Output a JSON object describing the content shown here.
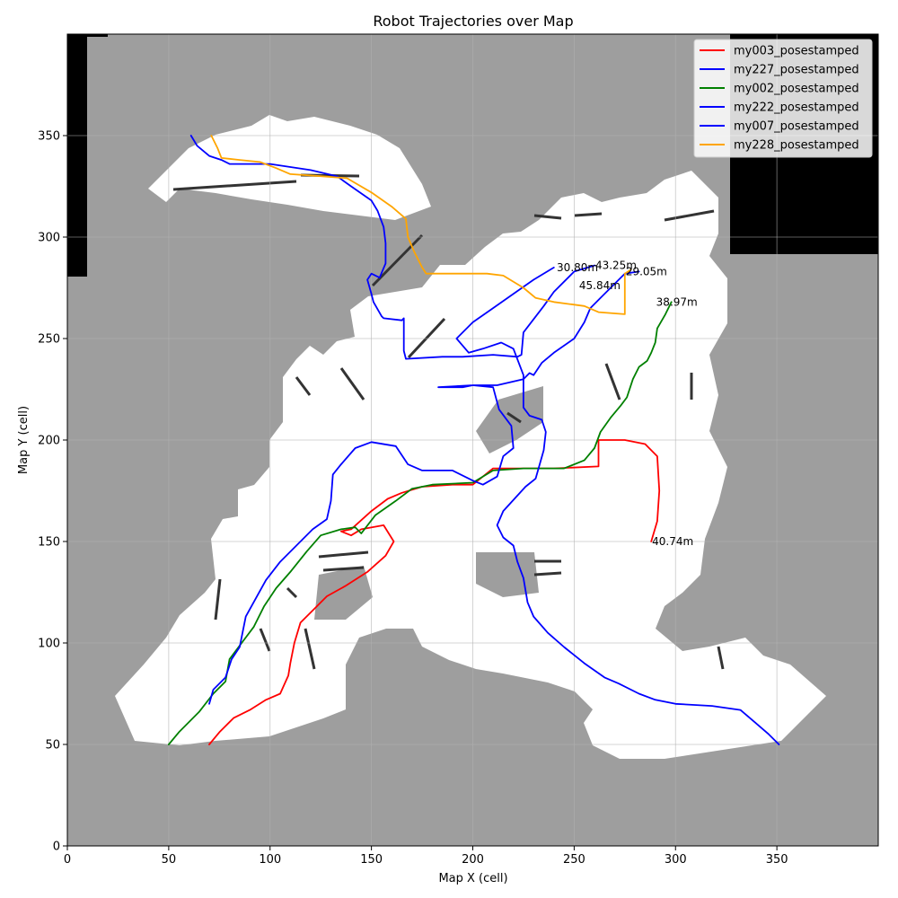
{
  "chart_data": {
    "type": "line",
    "title": "Robot Trajectories over Map",
    "xlabel": "Map X (cell)",
    "ylabel": "Map Y (cell)",
    "xlim": [
      0,
      400
    ],
    "ylim": [
      0,
      400
    ],
    "xticks": [
      0,
      50,
      100,
      150,
      200,
      250,
      300,
      350
    ],
    "yticks": [
      0,
      50,
      100,
      150,
      200,
      250,
      300,
      350
    ],
    "grid": true,
    "legend_position": "top-right",
    "map_colors": {
      "unknown": "#9e9e9e",
      "free": "#ffffff",
      "occupied": "#333333",
      "outside": "#000000"
    },
    "series": [
      {
        "name": "my003_posestamped",
        "color": "#ff0000",
        "points": [
          [
            70,
            50
          ],
          [
            75,
            56
          ],
          [
            82,
            63
          ],
          [
            90,
            67
          ],
          [
            98,
            72
          ],
          [
            105,
            75
          ],
          [
            109,
            84
          ],
          [
            110,
            90
          ],
          [
            112,
            100
          ],
          [
            115,
            110
          ],
          [
            122,
            117
          ],
          [
            128,
            123
          ],
          [
            137,
            128
          ],
          [
            148,
            135
          ],
          [
            157,
            143
          ],
          [
            161,
            150
          ],
          [
            156,
            158
          ],
          [
            145,
            156
          ],
          [
            140,
            153
          ],
          [
            135,
            155
          ],
          [
            140,
            156
          ],
          [
            150,
            165
          ],
          [
            158,
            171
          ],
          [
            165,
            174
          ],
          [
            175,
            177
          ],
          [
            190,
            178
          ],
          [
            200,
            178
          ],
          [
            210,
            186
          ],
          [
            240,
            186
          ],
          [
            262,
            187
          ],
          [
            262,
            200
          ],
          [
            275,
            200
          ],
          [
            285,
            198
          ],
          [
            291,
            192
          ],
          [
            292,
            175
          ],
          [
            291,
            160
          ],
          [
            288,
            150
          ]
        ],
        "label": "40.74m",
        "label_at": [
          288,
          150
        ]
      },
      {
        "name": "my227_posestamped",
        "color": "#0000ff",
        "points": [
          [
            61,
            350
          ],
          [
            64,
            345
          ],
          [
            70,
            340
          ],
          [
            76,
            338
          ],
          [
            80,
            336
          ],
          [
            100,
            336
          ],
          [
            120,
            333
          ],
          [
            133,
            330
          ],
          [
            140,
            325
          ],
          [
            150,
            318
          ],
          [
            153,
            313
          ],
          [
            156,
            305
          ],
          [
            157,
            297
          ],
          [
            157,
            287
          ],
          [
            154,
            280
          ],
          [
            150,
            282
          ],
          [
            148,
            279
          ],
          [
            150,
            272
          ],
          [
            151,
            268
          ],
          [
            155,
            261
          ],
          [
            156,
            260
          ],
          [
            165,
            259
          ],
          [
            166,
            260
          ],
          [
            166,
            244
          ],
          [
            167,
            240
          ],
          [
            185,
            241
          ],
          [
            195,
            241
          ],
          [
            210,
            242
          ],
          [
            222,
            241
          ],
          [
            224,
            242
          ],
          [
            225,
            253
          ],
          [
            235,
            266
          ],
          [
            240,
            273
          ],
          [
            250,
            283
          ],
          [
            260,
            286
          ]
        ],
        "label": "43.25m",
        "label_at": [
          260,
          286
        ]
      },
      {
        "name": "my002_posestamped",
        "color": "#008000",
        "points": [
          [
            50,
            50
          ],
          [
            55,
            56
          ],
          [
            65,
            66
          ],
          [
            72,
            75
          ],
          [
            78,
            81
          ],
          [
            80,
            92
          ],
          [
            86,
            100
          ],
          [
            92,
            108
          ],
          [
            97,
            118
          ],
          [
            103,
            127
          ],
          [
            110,
            135
          ],
          [
            118,
            145
          ],
          [
            125,
            153
          ],
          [
            135,
            156
          ],
          [
            142,
            157
          ],
          [
            145,
            154
          ],
          [
            152,
            163
          ],
          [
            162,
            170
          ],
          [
            170,
            176
          ],
          [
            180,
            178
          ],
          [
            200,
            179
          ],
          [
            210,
            185
          ],
          [
            225,
            186
          ],
          [
            245,
            186
          ],
          [
            255,
            190
          ],
          [
            260,
            196
          ],
          [
            263,
            204
          ],
          [
            268,
            211
          ],
          [
            273,
            217
          ],
          [
            276,
            221
          ],
          [
            279,
            230
          ],
          [
            282,
            236
          ],
          [
            286,
            239
          ],
          [
            288,
            243
          ],
          [
            290,
            248
          ],
          [
            291,
            255
          ],
          [
            295,
            262
          ],
          [
            298,
            268
          ]
        ],
        "label": "38.97m",
        "label_at": [
          290,
          268
        ]
      },
      {
        "name": "my222_posestamped",
        "color": "#0000ff",
        "points": [
          [
            70,
            70
          ],
          [
            72,
            77
          ],
          [
            78,
            83
          ],
          [
            81,
            92
          ],
          [
            85,
            98
          ],
          [
            88,
            113
          ],
          [
            93,
            122
          ],
          [
            98,
            131
          ],
          [
            105,
            140
          ],
          [
            113,
            148
          ],
          [
            121,
            156
          ],
          [
            128,
            161
          ],
          [
            130,
            170
          ],
          [
            131,
            183
          ],
          [
            135,
            188
          ],
          [
            142,
            196
          ],
          [
            150,
            199
          ],
          [
            162,
            197
          ],
          [
            168,
            188
          ],
          [
            175,
            185
          ],
          [
            190,
            185
          ],
          [
            200,
            180
          ],
          [
            205,
            178
          ],
          [
            212,
            182
          ],
          [
            215,
            192
          ],
          [
            220,
            196
          ],
          [
            219,
            207
          ],
          [
            213,
            215
          ],
          [
            210,
            226
          ],
          [
            200,
            227
          ],
          [
            195,
            226
          ],
          [
            183,
            226
          ],
          [
            200,
            227
          ],
          [
            212,
            227
          ],
          [
            225,
            230
          ],
          [
            228,
            233
          ],
          [
            230,
            232
          ],
          [
            234,
            238
          ],
          [
            240,
            243
          ],
          [
            250,
            250
          ],
          [
            255,
            258
          ],
          [
            258,
            265
          ],
          [
            263,
            270
          ],
          [
            270,
            277
          ],
          [
            275,
            282
          ],
          [
            282,
            283
          ]
        ],
        "label": "29.05m",
        "label_at": [
          275,
          283
        ]
      },
      {
        "name": "my007_posestamped",
        "color": "#0000ff",
        "points": [
          [
            351,
            50
          ],
          [
            346,
            55
          ],
          [
            339,
            61
          ],
          [
            332,
            67
          ],
          [
            318,
            69
          ],
          [
            300,
            70
          ],
          [
            290,
            72
          ],
          [
            282,
            75
          ],
          [
            272,
            80
          ],
          [
            265,
            83
          ],
          [
            255,
            90
          ],
          [
            245,
            98
          ],
          [
            237,
            105
          ],
          [
            230,
            113
          ],
          [
            227,
            120
          ],
          [
            225,
            132
          ],
          [
            222,
            140
          ],
          [
            220,
            148
          ],
          [
            215,
            152
          ],
          [
            212,
            158
          ],
          [
            215,
            165
          ],
          [
            226,
            177
          ],
          [
            231,
            181
          ],
          [
            235,
            195
          ],
          [
            236,
            204
          ],
          [
            234,
            210
          ],
          [
            228,
            212
          ],
          [
            225,
            216
          ],
          [
            225,
            225
          ],
          [
            225,
            232
          ],
          [
            220,
            245
          ],
          [
            214,
            248
          ],
          [
            205,
            245
          ],
          [
            198,
            243
          ],
          [
            192,
            250
          ],
          [
            200,
            258
          ],
          [
            210,
            265
          ],
          [
            220,
            272
          ],
          [
            230,
            279
          ],
          [
            240,
            285
          ]
        ],
        "label": "30.80m",
        "label_at": [
          241,
          285
        ]
      },
      {
        "name": "my228_posestamped",
        "color": "#ffa500",
        "points": [
          [
            71,
            350
          ],
          [
            74,
            344
          ],
          [
            76,
            339
          ],
          [
            85,
            338
          ],
          [
            95,
            337
          ],
          [
            103,
            334
          ],
          [
            110,
            331
          ],
          [
            125,
            330
          ],
          [
            138,
            329
          ],
          [
            150,
            322
          ],
          [
            160,
            315
          ],
          [
            167,
            309
          ],
          [
            168,
            300
          ],
          [
            171,
            293
          ],
          [
            175,
            285
          ],
          [
            177,
            282
          ],
          [
            195,
            282
          ],
          [
            207,
            282
          ],
          [
            215,
            281
          ],
          [
            225,
            275
          ],
          [
            231,
            270
          ],
          [
            240,
            268
          ],
          [
            255,
            266
          ],
          [
            262,
            263
          ],
          [
            275,
            262
          ],
          [
            275,
            282
          ],
          [
            278,
            284
          ]
        ],
        "label": "45.84m",
        "label_at": [
          252,
          276
        ]
      }
    ]
  }
}
